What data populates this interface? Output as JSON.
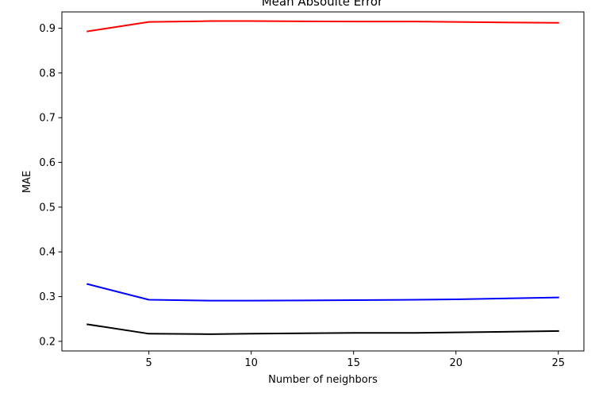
{
  "chart_data": {
    "type": "line",
    "title": "Mean Absoulte Error",
    "xlabel": "Number of neighbors",
    "ylabel": "MAE",
    "x": [
      2,
      5,
      8,
      10,
      15,
      18,
      20,
      25
    ],
    "xlim": [
      0.75,
      26.25
    ],
    "ylim": [
      0.1785,
      0.9365
    ],
    "xticks": [
      5,
      10,
      15,
      20,
      25
    ],
    "yticks": [
      0.2,
      0.3,
      0.4,
      0.5,
      0.6,
      0.7,
      0.8,
      0.9
    ],
    "ytick_labels": [
      "0.2",
      "0.3",
      "0.4",
      "0.5",
      "0.6",
      "0.7",
      "0.8",
      "0.9"
    ],
    "xtick_labels": [
      "5",
      "10",
      "15",
      "20",
      "25"
    ],
    "grid": false,
    "series": [
      {
        "color": "#ff0000",
        "values": [
          0.893,
          0.914,
          0.916,
          0.916,
          0.915,
          0.915,
          0.914,
          0.912
        ]
      },
      {
        "color": "#0000ff",
        "values": [
          0.328,
          0.293,
          0.291,
          0.291,
          0.292,
          0.293,
          0.294,
          0.298
        ]
      },
      {
        "color": "#000000",
        "values": [
          0.238,
          0.217,
          0.216,
          0.217,
          0.219,
          0.219,
          0.22,
          0.223
        ]
      }
    ]
  }
}
